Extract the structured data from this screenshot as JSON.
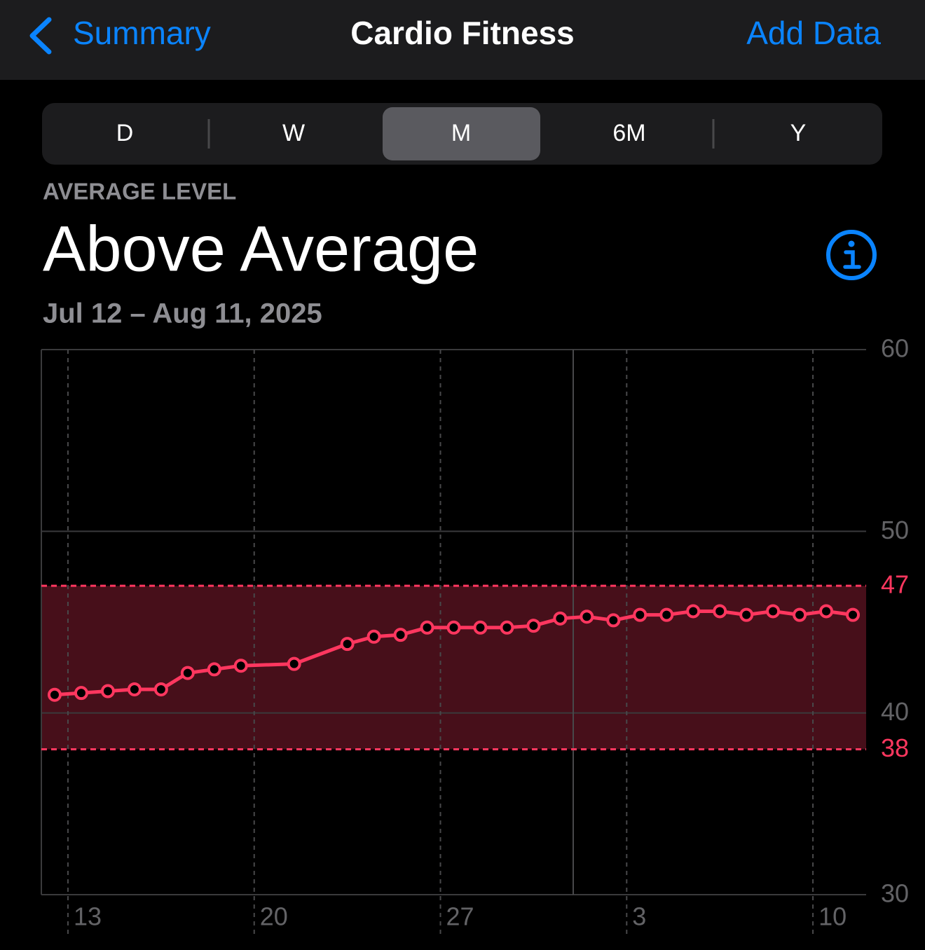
{
  "nav": {
    "back": "Summary",
    "title": "Cardio Fitness",
    "action": "Add Data"
  },
  "segments": [
    "D",
    "W",
    "M",
    "6M",
    "Y"
  ],
  "header": {
    "label": "AVERAGE LEVEL",
    "value": "Above Average",
    "date_range": "Jul 12 – Aug 11, 2025"
  },
  "chart_data": {
    "type": "line",
    "x": [
      "2025-07-12",
      "2025-07-13",
      "2025-07-14",
      "2025-07-15",
      "2025-07-16",
      "2025-07-17",
      "2025-07-18",
      "2025-07-19",
      "2025-07-21",
      "2025-07-23",
      "2025-07-24",
      "2025-07-25",
      "2025-07-26",
      "2025-07-27",
      "2025-07-28",
      "2025-07-29",
      "2025-07-30",
      "2025-07-31",
      "2025-08-01",
      "2025-08-02",
      "2025-08-03",
      "2025-08-04",
      "2025-08-05",
      "2025-08-06",
      "2025-08-07",
      "2025-08-08",
      "2025-08-09",
      "2025-08-10",
      "2025-08-11"
    ],
    "values": [
      41.0,
      41.1,
      41.2,
      41.3,
      41.3,
      42.2,
      42.4,
      42.6,
      42.7,
      43.8,
      44.2,
      44.3,
      44.7,
      44.7,
      44.7,
      44.7,
      44.8,
      45.2,
      45.3,
      45.1,
      45.4,
      45.4,
      45.6,
      45.6,
      45.4,
      45.6,
      45.4,
      45.6,
      45.4
    ],
    "color": "#ff375f",
    "band": [
      38,
      47
    ],
    "xlim": [
      "2025-07-12",
      "2025-08-11"
    ],
    "xticks": [
      {
        "value": "2025-07-13",
        "label": "13"
      },
      {
        "value": "2025-07-20",
        "label": "20"
      },
      {
        "value": "2025-07-27",
        "label": "27"
      },
      {
        "value": "2025-08-03",
        "label": "3"
      },
      {
        "value": "2025-08-10",
        "label": "10"
      }
    ],
    "ylim": [
      30,
      60
    ],
    "yticks": [
      30,
      40,
      50,
      60
    ],
    "grid": true
  }
}
